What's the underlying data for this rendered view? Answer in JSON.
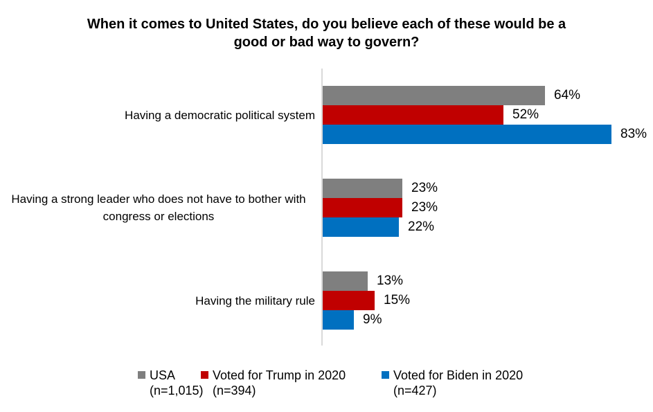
{
  "title": "When it comes to United States, do you believe each of these would be a good or bad way to govern?",
  "chart_data": {
    "type": "bar",
    "orientation": "horizontal",
    "title": "When it comes to United States, do you believe each of these would be a good or bad way to govern?",
    "categories": [
      "Having a democratic political system",
      "Having a strong leader who does not have to bother with congress or elections",
      "Having the military rule"
    ],
    "series": [
      {
        "name": "USA",
        "n_label": "(n=1,015)",
        "color": "#7F7F7F",
        "values": [
          64,
          23,
          13
        ]
      },
      {
        "name": "Voted for Trump in 2020",
        "n_label": "(n=394)",
        "color": "#C00000",
        "values": [
          52,
          23,
          15
        ]
      },
      {
        "name": "Voted for Biden in 2020",
        "n_label": "(n=427)",
        "color": "#0070C0",
        "values": [
          83,
          22,
          9
        ]
      }
    ],
    "value_suffix": "%",
    "data_labels_visible": true,
    "legend_position": "bottom",
    "axis": {
      "line_color": "#D9D9D9",
      "tick_labels_hidden": true
    },
    "background_color": "#FFFFFF"
  }
}
